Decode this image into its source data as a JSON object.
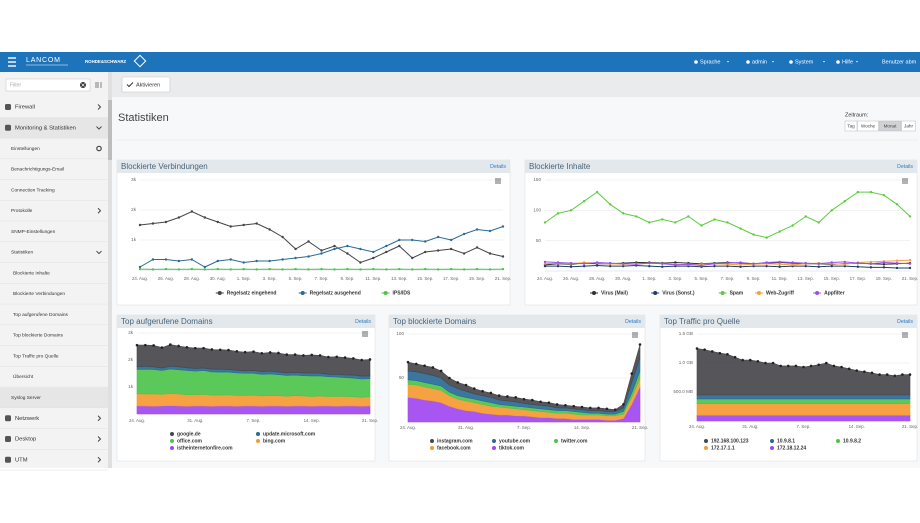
{
  "header": {
    "brand": "LANCOM",
    "partner": "ROHDE&SCHWARZ",
    "menu": [
      "Sprache",
      "admin",
      "System",
      "Hilfe",
      "Benutzer abm"
    ]
  },
  "sidebar": {
    "filter": "Filter",
    "items": [
      "Firewall",
      "Monitoring & Statistiken",
      "Einstellungen",
      "Benachrichtigungs-Email",
      "Connection Tracking",
      "Protokolle",
      "SNMP-Einstellungen",
      "Statistiken",
      "Blockierte Inhalte",
      "Blockierte Verbindungen",
      "Top aufgerufene Domains",
      "Top blockierte Domains",
      "Top Traffic pro Quelle",
      "Übersicht",
      "Syslog Server",
      "Netzwerk",
      "Desktop",
      "UTM"
    ]
  },
  "toolbar": {
    "button": "Aktivieren"
  },
  "page": {
    "title": "Statistiken",
    "period_label": "Zeitraum:",
    "periods": [
      "Tag",
      "Woche",
      "Monat",
      "Jahr"
    ],
    "active_period": 2
  },
  "chart_data": [
    {
      "type": "line",
      "title": "Blockierte Verbindungen",
      "link": "Details",
      "categories": [
        "24. Aug.",
        null,
        "26. Aug.",
        null,
        "28. Aug.",
        null,
        "30. Aug.",
        null,
        "1. Sep.",
        null,
        "3. Sep.",
        null,
        "5. Sep.",
        null,
        "7. Sep.",
        null,
        "9. Sep.",
        null,
        "11. Sep.",
        null,
        "13. Sep.",
        null,
        "15. Sep.",
        null,
        "17. Sep.",
        null,
        "19. Sep.",
        null,
        "21. Sep."
      ],
      "ylim": [
        0,
        3000
      ],
      "yticks": [
        {
          "value": 1000,
          "label": "1k"
        },
        {
          "value": 2000,
          "label": "2k"
        },
        {
          "value": 3000,
          "label": "3k"
        }
      ],
      "grid": true,
      "series": [
        {
          "name": "Regelsatz eingehend",
          "color": "#434348",
          "values": [
            1500,
            1550,
            1600,
            1750,
            1950,
            1750,
            1600,
            1450,
            1500,
            1550,
            1350,
            1100,
            700,
            950,
            650,
            800,
            550,
            250,
            400,
            600,
            800,
            400,
            600,
            650,
            700,
            550,
            750,
            550,
            450
          ]
        },
        {
          "name": "Regelsatz ausgehend",
          "color": "#2a6a96",
          "values": [
            100,
            350,
            350,
            300,
            350,
            100,
            300,
            350,
            250,
            300,
            300,
            350,
            400,
            450,
            550,
            700,
            800,
            700,
            600,
            800,
            1000,
            1000,
            950,
            1100,
            1000,
            1200,
            1350,
            1300,
            1450
          ]
        },
        {
          "name": "IPS/IDS",
          "color": "#4cc44c",
          "values": [
            30,
            20,
            30,
            20,
            30,
            20,
            30,
            20,
            30,
            20,
            30,
            20,
            30,
            20,
            30,
            20,
            30,
            20,
            30,
            20,
            30,
            20,
            30,
            20,
            30,
            20,
            30,
            20,
            30
          ]
        }
      ]
    },
    {
      "type": "line",
      "title": "Blockierte Inhalte",
      "link": "Details",
      "categories": [
        "24. Aug.",
        null,
        "26. Aug.",
        null,
        "28. Aug.",
        null,
        "30. Aug.",
        null,
        "1. Sep.",
        null,
        "3. Sep.",
        null,
        "5. Sep.",
        null,
        "7. Sep.",
        null,
        "9. Sep.",
        null,
        "11. Sep.",
        null,
        "13. Sep.",
        null,
        "15. Sep.",
        null,
        "17. Sep.",
        null,
        "19. Sep.",
        null,
        "21. Sep."
      ],
      "ylim": [
        0,
        150
      ],
      "yticks": [
        50,
        100,
        150
      ],
      "grid": true,
      "series": [
        {
          "name": "Virus (Mail)",
          "color": "#303030",
          "values": [
            10,
            12,
            11,
            13,
            12,
            12,
            13,
            14,
            14,
            13,
            14,
            13,
            12,
            13,
            14,
            13,
            12,
            13,
            14,
            13,
            12,
            12,
            11,
            12,
            13,
            12,
            11,
            12,
            13
          ]
        },
        {
          "name": "Virus (Sonst.)",
          "color": "#1d3f66",
          "values": [
            8,
            8,
            7,
            8,
            9,
            8,
            8,
            9,
            8,
            7,
            8,
            8,
            7,
            8,
            8,
            7,
            8,
            8,
            7,
            8,
            8,
            7,
            8,
            8,
            7,
            6,
            6,
            5,
            5
          ]
        },
        {
          "name": "Spam",
          "color": "#5ccc3c",
          "values": [
            80,
            95,
            100,
            115,
            130,
            110,
            95,
            90,
            80,
            85,
            80,
            90,
            75,
            85,
            80,
            70,
            60,
            55,
            65,
            75,
            90,
            80,
            100,
            115,
            130,
            130,
            125,
            110,
            90
          ]
        },
        {
          "name": "Web-Zugriff",
          "color": "#f5a03a",
          "values": [
            12,
            13,
            12,
            14,
            13,
            12,
            11,
            12,
            13,
            12,
            11,
            10,
            11,
            12,
            11,
            10,
            11,
            12,
            11,
            10,
            12,
            13,
            12,
            11,
            14,
            15,
            16,
            17,
            18
          ]
        },
        {
          "name": "Appfilter",
          "color": "#9b52e8",
          "values": [
            15,
            14,
            13,
            12,
            14,
            13,
            12,
            11,
            13,
            12,
            10,
            11,
            9,
            12,
            13,
            14,
            12,
            14,
            15,
            14,
            13,
            12,
            14,
            15,
            13,
            12,
            14,
            13,
            12
          ]
        }
      ]
    },
    {
      "type": "area",
      "stacked": true,
      "title": "Top aufgerufene Domains",
      "link": "Details",
      "categories": [
        "24. Aug.",
        null,
        null,
        null,
        null,
        null,
        null,
        "31. Aug.",
        null,
        null,
        null,
        null,
        null,
        null,
        "7. Sep.",
        null,
        null,
        null,
        null,
        null,
        null,
        "14. Sep.",
        null,
        null,
        null,
        null,
        null,
        null,
        "21. Sep."
      ],
      "ylim": [
        0,
        3000
      ],
      "yticks": [
        {
          "value": 1000,
          "label": "1k"
        },
        {
          "value": 2000,
          "label": "2k"
        },
        {
          "value": 3000,
          "label": "3k"
        }
      ],
      "grid": true,
      "series": [
        {
          "name": "google.de",
          "color": "#46474c",
          "values": [
            800,
            780,
            790,
            760,
            800,
            770,
            760,
            750,
            740,
            730,
            720,
            720,
            700,
            690,
            700,
            680,
            690,
            700,
            680,
            660,
            650,
            670,
            660,
            640,
            650,
            640,
            620,
            600,
            610
          ]
        },
        {
          "name": "update.microsoft.com",
          "color": "#2a6a96",
          "values": [
            100,
            110,
            100,
            90,
            100,
            110,
            100,
            100,
            90,
            100,
            110,
            100,
            100,
            90,
            100,
            100,
            110,
            100,
            90,
            100,
            100,
            110,
            100,
            90,
            100,
            100,
            110,
            100,
            100
          ]
        },
        {
          "name": "office.com",
          "color": "#4cc44c",
          "values": [
            900,
            920,
            900,
            880,
            910,
            900,
            890,
            870,
            880,
            860,
            850,
            840,
            830,
            820,
            810,
            800,
            790,
            780,
            770,
            760,
            750,
            760,
            740,
            730,
            720,
            700,
            690,
            680,
            670
          ]
        },
        {
          "name": "bing.com",
          "color": "#f59a32",
          "values": [
            450,
            440,
            460,
            430,
            450,
            440,
            430,
            420,
            430,
            410,
            400,
            410,
            400,
            390,
            400,
            380,
            390,
            380,
            370,
            380,
            370,
            360,
            370,
            350,
            360,
            350,
            340,
            330,
            340
          ]
        },
        {
          "name": "istheinternetonfire.com",
          "color": "#a048f0",
          "values": [
            300,
            300,
            290,
            300,
            310,
            300,
            290,
            300,
            300,
            290,
            300,
            300,
            290,
            300,
            300,
            290,
            300,
            300,
            290,
            300,
            300,
            290,
            300,
            300,
            290,
            300,
            300,
            290,
            300
          ]
        }
      ]
    },
    {
      "type": "area",
      "stacked": true,
      "title": "Top blockierte Domains",
      "link": "Details",
      "categories": [
        "24. Aug.",
        null,
        null,
        null,
        null,
        null,
        null,
        "31. Aug.",
        null,
        null,
        null,
        null,
        null,
        null,
        "7. Sep.",
        null,
        null,
        null,
        null,
        null,
        null,
        "14. Sep.",
        null,
        null,
        null,
        null,
        null,
        null,
        "21. Sep."
      ],
      "ylim": [
        0,
        100
      ],
      "yticks": [
        50,
        100
      ],
      "grid": true,
      "series": [
        {
          "name": "instagram.com",
          "color": "#46474c",
          "values": [
            10,
            9,
            9,
            9,
            8,
            8,
            7,
            7,
            6,
            5,
            5,
            5,
            5,
            5,
            5,
            5,
            4,
            4,
            4,
            3,
            3,
            3,
            3,
            3,
            3,
            2,
            4,
            10,
            15
          ]
        },
        {
          "name": "youtube.com",
          "color": "#2a6a96",
          "values": [
            10,
            10,
            10,
            10,
            9,
            8,
            8,
            7,
            6,
            6,
            6,
            5,
            5,
            5,
            4,
            4,
            4,
            4,
            3,
            3,
            3,
            3,
            3,
            3,
            3,
            3,
            4,
            12,
            15
          ]
        },
        {
          "name": "twitter.com",
          "color": "#4cc44c",
          "values": [
            5,
            5,
            5,
            5,
            5,
            4,
            4,
            4,
            4,
            4,
            4,
            3,
            3,
            3,
            3,
            3,
            3,
            3,
            3,
            3,
            3,
            3,
            2,
            2,
            2,
            2,
            3,
            5,
            8
          ]
        },
        {
          "name": "facebook.com",
          "color": "#f59a32",
          "values": [
            15,
            15,
            15,
            14,
            14,
            12,
            11,
            11,
            10,
            10,
            9,
            9,
            8,
            8,
            7,
            7,
            7,
            6,
            6,
            6,
            6,
            5,
            5,
            5,
            5,
            5,
            5,
            8,
            10
          ]
        },
        {
          "name": "tiktok.com",
          "color": "#a048f0",
          "values": [
            28,
            27,
            25,
            24,
            22,
            18,
            15,
            13,
            12,
            10,
            9,
            8,
            8,
            7,
            7,
            6,
            5,
            5,
            4,
            4,
            3,
            3,
            3,
            3,
            2,
            2,
            4,
            20,
            40
          ]
        }
      ]
    },
    {
      "type": "area",
      "stacked": true,
      "title": "Top Traffic pro Quelle",
      "link": "Details",
      "categories": [
        "24. Aug.",
        null,
        null,
        null,
        null,
        null,
        null,
        "31. Aug.",
        null,
        null,
        null,
        null,
        null,
        null,
        "7. Sep.",
        null,
        null,
        null,
        null,
        null,
        null,
        "14. Sep.",
        null,
        null,
        null,
        null,
        null,
        null,
        "21. Sep."
      ],
      "ylim": [
        0,
        1.5
      ],
      "yticks": [
        {
          "value": 0.5,
          "label": "500.0 MB"
        },
        {
          "value": 1,
          "label": "1.0 GB"
        },
        {
          "value": 1.5,
          "label": "1.5 GB"
        }
      ],
      "grid": true,
      "series": [
        {
          "name": "192.168.100.123",
          "color": "#46474c",
          "values": [
            0.8,
            0.78,
            0.75,
            0.72,
            0.7,
            0.65,
            0.6,
            0.6,
            0.58,
            0.55,
            0.55,
            0.5,
            0.5,
            0.5,
            0.48,
            0.5,
            0.52,
            0.55,
            0.5,
            0.48,
            0.45,
            0.42,
            0.4,
            0.38,
            0.35,
            0.35,
            0.33,
            0.35,
            0.35
          ]
        },
        {
          "name": "10.9.8.1",
          "color": "#2a6a96",
          "values": [
            0.07,
            0.07,
            0.07,
            0.07,
            0.07,
            0.07,
            0.07,
            0.07,
            0.07,
            0.07,
            0.07,
            0.07,
            0.07,
            0.07,
            0.07,
            0.07,
            0.07,
            0.07,
            0.07,
            0.07,
            0.07,
            0.07,
            0.07,
            0.07,
            0.07,
            0.07,
            0.07,
            0.07,
            0.07
          ]
        },
        {
          "name": "10.9.8.2",
          "color": "#4cc44c",
          "values": [
            0.08,
            0.08,
            0.08,
            0.08,
            0.08,
            0.08,
            0.08,
            0.08,
            0.08,
            0.08,
            0.08,
            0.08,
            0.08,
            0.08,
            0.08,
            0.08,
            0.08,
            0.08,
            0.08,
            0.08,
            0.08,
            0.08,
            0.08,
            0.08,
            0.08,
            0.08,
            0.08,
            0.08,
            0.08
          ]
        },
        {
          "name": "172.17.1.1",
          "color": "#f59a32",
          "values": [
            0.2,
            0.2,
            0.2,
            0.2,
            0.2,
            0.2,
            0.2,
            0.2,
            0.2,
            0.2,
            0.2,
            0.2,
            0.2,
            0.2,
            0.2,
            0.2,
            0.2,
            0.2,
            0.2,
            0.2,
            0.2,
            0.2,
            0.2,
            0.2,
            0.2,
            0.2,
            0.2,
            0.2,
            0.2
          ]
        },
        {
          "name": "172.18.12.24",
          "color": "#a048f0",
          "values": [
            0.1,
            0.1,
            0.1,
            0.1,
            0.1,
            0.1,
            0.1,
            0.1,
            0.1,
            0.1,
            0.1,
            0.1,
            0.1,
            0.1,
            0.1,
            0.1,
            0.1,
            0.1,
            0.1,
            0.1,
            0.1,
            0.1,
            0.1,
            0.1,
            0.1,
            0.1,
            0.1,
            0.1,
            0.1
          ]
        }
      ]
    }
  ]
}
